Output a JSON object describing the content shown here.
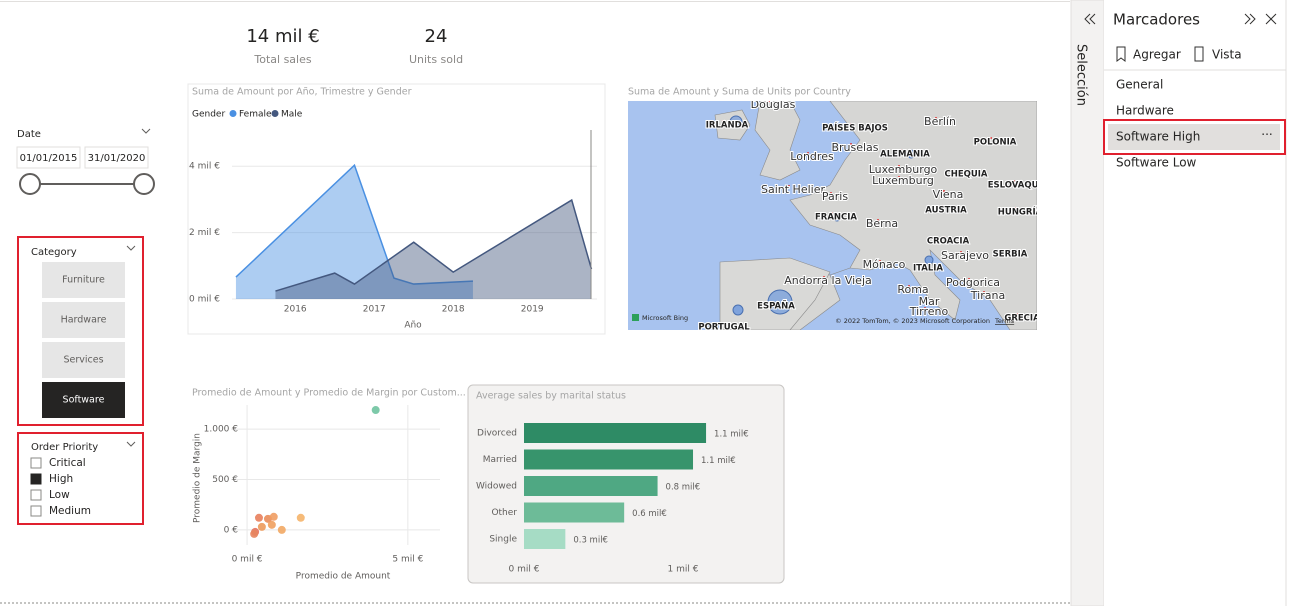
{
  "cards": [
    {
      "value": "14 mil €",
      "label": "Total sales"
    },
    {
      "value": "24",
      "label": "Units sold"
    }
  ],
  "date_slicer": {
    "title": "Date",
    "start": "01/01/2015",
    "end": "31/01/2020"
  },
  "category_slicer": {
    "title": "Category",
    "items": [
      "Furniture",
      "Hardware",
      "Services",
      "Software"
    ],
    "selected": "Software"
  },
  "priority_slicer": {
    "title": "Order Priority",
    "items": [
      "Critical",
      "High",
      "Low",
      "Medium"
    ],
    "checked": "High"
  },
  "area_chart": {
    "type": "area",
    "title": "Suma de Amount por Año, Trimestre y Gender",
    "legend_title": "Gender",
    "x_label": "Año",
    "xlim": [
      2015.2,
      2019.82
    ],
    "xticks": [
      2016,
      2017,
      2018,
      2019
    ],
    "ylim": [
      0,
      5
    ],
    "yticks": [
      {
        "value": 0,
        "label": "0 mil €"
      },
      {
        "value": 2,
        "label": "2 mil €"
      },
      {
        "value": 4,
        "label": "4 mil €"
      }
    ],
    "grid": true,
    "series": [
      {
        "name": "Female",
        "color": "#4a90e2",
        "x": [
          2015.25,
          2016.75,
          2017.25,
          2017.5,
          2018.25
        ],
        "values": [
          0.66,
          4.03,
          0.63,
          0.45,
          0.54
        ]
      },
      {
        "name": "Male",
        "color": "#44587f",
        "x": [
          2015.75,
          2016.5,
          2016.75,
          2017.5,
          2018,
          2019.5,
          2019.75
        ],
        "values": [
          0.24,
          0.78,
          0.45,
          1.71,
          0.81,
          2.98,
          0.9
        ]
      }
    ]
  },
  "map": {
    "title": "Suma de Amount y Suma de Units por Country",
    "labels": [
      "Douglas",
      "IRLANDA",
      "PAÍSES BAJOS",
      "Berlín",
      "POLONIA",
      "Londres",
      "Bruselas",
      "ALEMANIA",
      "Luxemburgo",
      "Luxemburg",
      "CHEQUIA",
      "Saint Helier",
      "Paris",
      "ESLOVAQUIA",
      "Viena",
      "FRANCIA",
      "AUSTRIA",
      "HUNGRÍA",
      "Berna",
      "CROACIA",
      "Sarajevo",
      "SERBIA",
      "Mónaco",
      "ITALIA",
      "Andorra la Vieja",
      "Podgorica",
      "Roma",
      "Tirana",
      "ESPAÑA",
      "Mar",
      "Tirreno",
      "PORTUGAL",
      "GRECIA"
    ],
    "brand": "Microsoft Bing",
    "attribution": "© 2022 TomTom, © 2023 Microsoft Corporation",
    "terms": "Terms"
  },
  "scatter": {
    "type": "scatter",
    "title": "Promedio de Amount y Promedio de Margin por Custom...",
    "x_label": "Promedio de Amount",
    "y_label": "Promedio de Margin",
    "xlim": [
      -0.5,
      6
    ],
    "xticks": [
      {
        "value": 0,
        "label": "0 mil €"
      },
      {
        "value": 5,
        "label": "5 mil €"
      }
    ],
    "ylim": [
      -150,
      1240
    ],
    "yticks": [
      {
        "value": 0,
        "label": "0 €"
      },
      {
        "value": 500,
        "label": "500 €"
      },
      {
        "value": 1000,
        "label": "1.000 €"
      }
    ],
    "grid": true,
    "x": [
      4.0,
      0.25,
      0.37,
      0.46,
      0.65,
      0.77,
      0.83,
      1.08,
      1.67,
      0.22
    ],
    "values": [
      1190,
      -20,
      120,
      30,
      110,
      50,
      130,
      0,
      120,
      -40
    ],
    "colors": [
      "#6fc3a0",
      "#e5735e",
      "#e8805c",
      "#ec9a5c",
      "#e98c5a",
      "#f0a05e",
      "#ef9d63",
      "#f2a864",
      "#f5b46a",
      "#e7855f"
    ]
  },
  "bar_chart": {
    "type": "hbar",
    "title": "Average sales by marital status",
    "categories": [
      "Divorced",
      "Married",
      "Widowed",
      "Other",
      "Single"
    ],
    "values": [
      1.145,
      1.063,
      0.84,
      0.63,
      0.26
    ],
    "value_labels": [
      "1.1 mil€",
      "1.1 mil€",
      "0.8 mil€",
      "0.6 mil€",
      "0.3 mil€"
    ],
    "colors": [
      "#2e8b65",
      "#37946c",
      "#4fa883",
      "#6dbb98",
      "#a6dcc5"
    ],
    "xlim": [
      0,
      1.3
    ],
    "xticks": [
      {
        "value": 0,
        "label": "0 mil €"
      },
      {
        "value": 1,
        "label": "1 mil €"
      }
    ]
  },
  "panes": {
    "selection": "Selección",
    "bookmarks": {
      "title": "Marcadores",
      "add": "Agregar",
      "view": "Vista",
      "items": [
        "General",
        "Hardware",
        "Software High",
        "Software Low"
      ],
      "selected": "Software High"
    }
  }
}
